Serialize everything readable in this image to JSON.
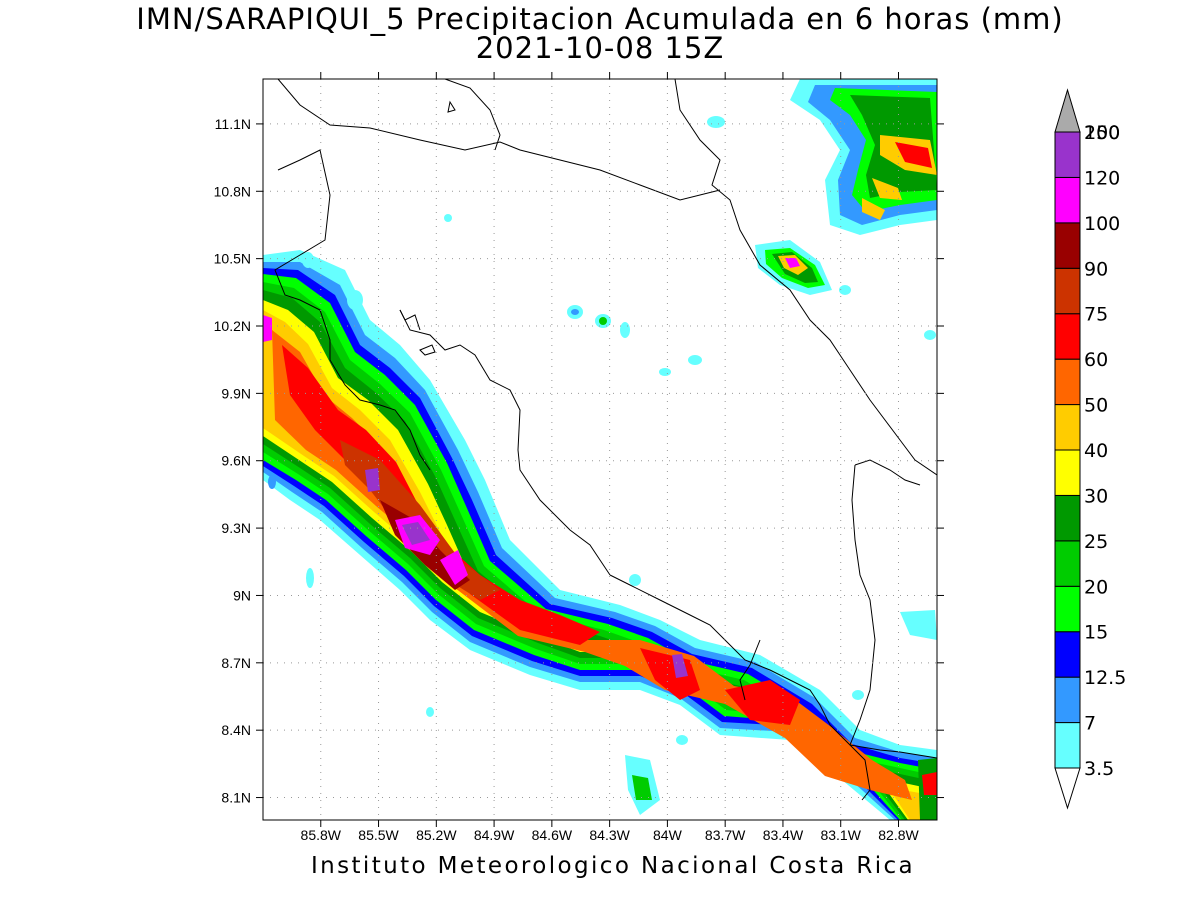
{
  "title": "IMN/SARAPIQUI_5 Precipitacion Acumulada en 6 horas (mm)",
  "subtitle": "2021-10-08 15Z",
  "footer": "Instituto Meteorologico Nacional Costa Rica",
  "map": {
    "lon_range": [
      -86.1,
      -82.6
    ],
    "lat_range": [
      8.0,
      11.3
    ],
    "lat_ticks": [
      {
        "v": 11.1,
        "label": "11.1N"
      },
      {
        "v": 10.8,
        "label": "10.8N"
      },
      {
        "v": 10.5,
        "label": "10.5N"
      },
      {
        "v": 10.2,
        "label": "10.2N"
      },
      {
        "v": 9.9,
        "label": "9.9N"
      },
      {
        "v": 9.6,
        "label": "9.6N"
      },
      {
        "v": 9.3,
        "label": "9.3N"
      },
      {
        "v": 9.0,
        "label": "9N"
      },
      {
        "v": 8.7,
        "label": "8.7N"
      },
      {
        "v": 8.4,
        "label": "8.4N"
      },
      {
        "v": 8.1,
        "label": "8.1N"
      }
    ],
    "lon_ticks": [
      {
        "v": -85.8,
        "label": "85.8W"
      },
      {
        "v": -85.5,
        "label": "85.5W"
      },
      {
        "v": -85.2,
        "label": "85.2W"
      },
      {
        "v": -84.9,
        "label": "84.9W"
      },
      {
        "v": -84.6,
        "label": "84.6W"
      },
      {
        "v": -84.3,
        "label": "84.3W"
      },
      {
        "v": -84.0,
        "label": "84W"
      },
      {
        "v": -83.7,
        "label": "83.7W"
      },
      {
        "v": -83.4,
        "label": "83.4W"
      },
      {
        "v": -83.1,
        "label": "83.1W"
      },
      {
        "v": -82.8,
        "label": "82.8W"
      }
    ]
  },
  "colorbar": {
    "levels": [
      {
        "label": "3.5",
        "color": "#66ffff"
      },
      {
        "label": "7",
        "color": "#3399ff"
      },
      {
        "label": "12.5",
        "color": "#0000ff"
      },
      {
        "label": "15",
        "color": "#00ff00"
      },
      {
        "label": "20",
        "color": "#00cc00"
      },
      {
        "label": "25",
        "color": "#009900"
      },
      {
        "label": "30",
        "color": "#ffff00"
      },
      {
        "label": "40",
        "color": "#ffcc00"
      },
      {
        "label": "50",
        "color": "#ff6600"
      },
      {
        "label": "60",
        "color": "#ff0000"
      },
      {
        "label": "75",
        "color": "#cc3300"
      },
      {
        "label": "90",
        "color": "#990000"
      },
      {
        "label": "100",
        "color": "#ff00ff"
      },
      {
        "label": "120",
        "color": "#9933cc"
      },
      {
        "label": "150",
        "color": "#f5f5f5"
      },
      {
        "label": "200",
        "color": "#aaaaaa"
      }
    ]
  }
}
